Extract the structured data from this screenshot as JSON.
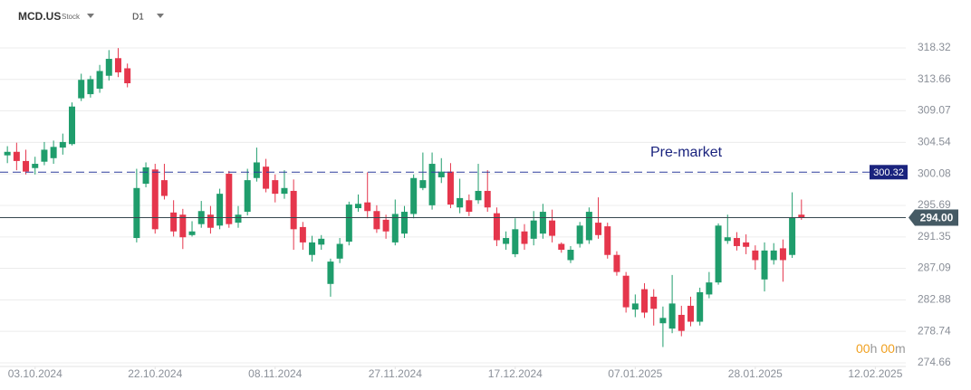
{
  "header": {
    "symbol": "MCD.US",
    "kind": "Stock",
    "interval": "D1"
  },
  "chart_data": {
    "type": "candlestick",
    "log_scale": true,
    "grid": true,
    "up_color": "#1f9d6c",
    "down_color": "#e5364c",
    "x": [
      0,
      1,
      2,
      3,
      4,
      5,
      6,
      7,
      8,
      9,
      10,
      11,
      12,
      13,
      14,
      15,
      16,
      17,
      18,
      19,
      20,
      21,
      22,
      23,
      24,
      25,
      26,
      27,
      28,
      29,
      30,
      31,
      32,
      33,
      34,
      35,
      36,
      37,
      38,
      39,
      40,
      41,
      42,
      43,
      44,
      45,
      46,
      47,
      48,
      49,
      50,
      51,
      52,
      53,
      54,
      55,
      56,
      57,
      58,
      59,
      60,
      61,
      62,
      63,
      64,
      65,
      66,
      67,
      68,
      69,
      70,
      71,
      72,
      73,
      74,
      75,
      76,
      77,
      78,
      79,
      80,
      81,
      82,
      83,
      84,
      85,
      86
    ],
    "open": [
      302.7,
      303.2,
      301.9,
      300.9,
      301.8,
      302.3,
      303.8,
      304.3,
      310.9,
      311.5,
      312.3,
      314.2,
      316.8,
      315.3,
      291.2,
      298.7,
      300.7,
      299.2,
      294.7,
      294.4,
      291.6,
      293.1,
      294.4,
      292.9,
      300.1,
      293.3,
      294.8,
      299.5,
      301.1,
      299.2,
      297.3,
      297.7,
      292.7,
      288.9,
      290.3,
      285.0,
      288.4,
      290.7,
      295.3,
      296.1,
      294.9,
      293.7,
      290.6,
      291.8,
      294.5,
      298.1,
      295.7,
      299.6,
      300.4,
      295.4,
      296.4,
      296.4,
      297.7,
      294.6,
      290.4,
      289.0,
      292.1,
      291.1,
      291.8,
      293.6,
      290.4,
      288.2,
      290.4,
      290.9,
      293.3,
      292.8,
      288.9,
      286.1,
      281.6,
      284.3,
      283.3,
      279.8,
      279.1,
      280.9,
      282.1,
      280.0,
      283.6,
      285.2,
      290.8,
      291.2,
      290.6,
      289.5,
      285.6,
      288.2,
      289.8,
      288.9,
      294.4
    ],
    "high": [
      304.0,
      304.5,
      303.5,
      302.5,
      304.6,
      304.8,
      305.8,
      310.3,
      314.5,
      314.2,
      315.8,
      318.0,
      318.3,
      316.0,
      300.8,
      301.7,
      301.5,
      301.5,
      296.4,
      295.2,
      293.5,
      296.3,
      295.6,
      298.0,
      300.5,
      295.6,
      300.8,
      303.8,
      302.2,
      300.0,
      300.6,
      299.3,
      293.4,
      291.5,
      291.6,
      288.4,
      291.2,
      296.2,
      297.2,
      300.3,
      295.7,
      294.4,
      296.5,
      295.6,
      300.0,
      303.1,
      303.1,
      302.3,
      301.6,
      299.4,
      297.2,
      301.5,
      300.6,
      295.4,
      292.1,
      293.9,
      293.1,
      294.9,
      295.9,
      295.1,
      290.6,
      290.1,
      293.4,
      295.4,
      296.8,
      293.3,
      289.4,
      286.6,
      283.6,
      285.1,
      284.3,
      282.0,
      286.2,
      282.1,
      283.3,
      284.5,
      286.6,
      293.2,
      294.4,
      292.0,
      291.7,
      290.2,
      290.6,
      290.5,
      291.0,
      297.5,
      296.5
    ],
    "low": [
      301.6,
      300.6,
      300.0,
      300.0,
      301.3,
      301.5,
      302.8,
      304.1,
      310.5,
      311.0,
      311.7,
      313.5,
      314.0,
      312.5,
      290.6,
      298.2,
      291.8,
      296.5,
      291.4,
      289.7,
      291.4,
      292.6,
      291.8,
      292.4,
      292.6,
      292.6,
      294.3,
      299.0,
      297.5,
      296.1,
      296.6,
      289.6,
      289.6,
      288.0,
      289.6,
      283.3,
      287.8,
      290.2,
      294.8,
      293.9,
      291.9,
      291.1,
      290.2,
      291.2,
      293.9,
      297.8,
      295.1,
      298.8,
      295.3,
      294.6,
      294.2,
      295.9,
      294.8,
      290.1,
      289.6,
      288.6,
      289.6,
      290.2,
      291.1,
      290.6,
      289.2,
      287.8,
      289.9,
      290.4,
      291.1,
      288.4,
      286.1,
      281.2,
      280.6,
      280.5,
      279.5,
      276.7,
      278.5,
      278.1,
      279.4,
      279.5,
      283.1,
      284.9,
      290.4,
      289.5,
      289.0,
      286.9,
      284.0,
      287.6,
      285.3,
      288.5,
      293.7
    ],
    "close": [
      303.2,
      301.9,
      300.4,
      301.5,
      303.5,
      303.9,
      304.6,
      309.7,
      313.6,
      313.7,
      314.9,
      316.7,
      314.7,
      313.1,
      298.1,
      301.0,
      292.4,
      297.0,
      292.1,
      291.3,
      292.1,
      294.9,
      292.6,
      297.3,
      293.1,
      294.4,
      299.2,
      301.7,
      298.0,
      297.3,
      298.1,
      292.4,
      290.6,
      290.6,
      291.1,
      288.0,
      290.4,
      295.8,
      295.9,
      294.9,
      292.4,
      292.1,
      294.5,
      294.8,
      299.5,
      299.2,
      301.5,
      300.4,
      295.8,
      296.7,
      294.8,
      297.7,
      295.4,
      290.9,
      291.2,
      292.4,
      290.4,
      293.6,
      294.8,
      291.5,
      289.6,
      289.6,
      292.9,
      294.8,
      291.6,
      288.9,
      286.6,
      281.9,
      282.4,
      281.2,
      281.7,
      280.5,
      282.4,
      278.8,
      280.0,
      283.9,
      285.2,
      292.9,
      291.3,
      290.1,
      290.0,
      288.2,
      289.5,
      289.5,
      288.2,
      294.0,
      294.0
    ],
    "xlim": [
      -0.8,
      97.3
    ],
    "xticks": [
      {
        "value": 3,
        "label": "03.10.2024"
      },
      {
        "value": 16,
        "label": "22.10.2024"
      },
      {
        "value": 29,
        "label": "08.11.2024"
      },
      {
        "value": 42,
        "label": "27.11.2024"
      },
      {
        "value": 55,
        "label": "17.12.2024"
      },
      {
        "value": 68,
        "label": "07.01.2025"
      },
      {
        "value": 81,
        "label": "28.01.2025"
      },
      {
        "value": 94,
        "label": "12.02.2025"
      }
    ],
    "ylim": [
      274.19,
      320.35
    ],
    "yticks": [
      318.32,
      313.66,
      309.07,
      304.54,
      300.08,
      295.69,
      291.35,
      287.09,
      282.88,
      278.74,
      274.66
    ],
    "reference_lines": [
      {
        "value": 300.32,
        "color": "#2e3f9e",
        "dashed": true
      },
      {
        "value": 294,
        "label": "294.00",
        "color": "#37474f",
        "dashed": false
      }
    ],
    "annotation": "Pre-market",
    "countdown": [
      "00",
      "h",
      "00",
      "m"
    ]
  }
}
